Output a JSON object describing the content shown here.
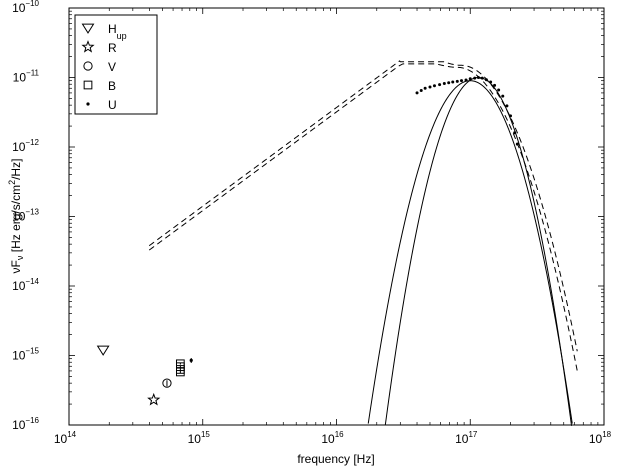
{
  "chart_data": {
    "type": "scatter",
    "xlabel": "frequency [Hz]",
    "ylabel": {
      "base": "νF",
      "sub": "ν",
      "unit_pre": " [Hz erg/s/cm",
      "unit_sup": "2",
      "unit_post": "/Hz]"
    },
    "x_scale": "log",
    "y_scale": "log",
    "xlim": [
      100000000000000.0,
      1e+18
    ],
    "ylim": [
      1e-16,
      1e-10
    ],
    "x_ticks": [
      {
        "base": "10",
        "exp": "14",
        "value": 100000000000000.0
      },
      {
        "base": "10",
        "exp": "15",
        "value": 1000000000000000.0
      },
      {
        "base": "10",
        "exp": "16",
        "value": 1e+16
      },
      {
        "base": "10",
        "exp": "17",
        "value": 1e+17
      },
      {
        "base": "10",
        "exp": "18",
        "value": 1e+18
      }
    ],
    "y_ticks": [
      {
        "base": "10",
        "exp": "−16",
        "value": 1e-16
      },
      {
        "base": "10",
        "exp": "−15",
        "value": 1e-15
      },
      {
        "base": "10",
        "exp": "−14",
        "value": 1e-14
      },
      {
        "base": "10",
        "exp": "−13",
        "value": 1e-13
      },
      {
        "base": "10",
        "exp": "−12",
        "value": 1e-12
      },
      {
        "base": "10",
        "exp": "−11",
        "value": 1e-11
      },
      {
        "base": "10",
        "exp": "−10",
        "value": 1e-10
      }
    ],
    "legend": {
      "position": "top-left",
      "entries": [
        {
          "marker": "triangle-down",
          "label": "H",
          "sub": "up"
        },
        {
          "marker": "star",
          "label": "R",
          "sub": ""
        },
        {
          "marker": "circle",
          "label": "V",
          "sub": ""
        },
        {
          "marker": "square",
          "label": "B",
          "sub": ""
        },
        {
          "marker": "dot",
          "label": "U",
          "sub": ""
        }
      ]
    },
    "markers": [
      {
        "name": "H_up",
        "symbol": "triangle-down",
        "x": 180000000000000.0,
        "y": 1.2e-15
      },
      {
        "name": "R",
        "symbol": "star",
        "x": 430000000000000.0,
        "y": 2.3e-16
      },
      {
        "name": "V",
        "symbol": "circle",
        "x": 540000000000000.0,
        "y": 4e-16,
        "err": [
          3.6e-16,
          4.4e-16
        ]
      },
      {
        "name": "B",
        "symbol": "square",
        "x": 680000000000000.0,
        "y": 5.8e-16,
        "err": [
          5.6e-16,
          6e-16
        ]
      },
      {
        "name": "B",
        "symbol": "square",
        "x": 680000000000000.0,
        "y": 6.3e-16,
        "err": [
          6.1e-16,
          6.5e-16
        ]
      },
      {
        "name": "B",
        "symbol": "square",
        "x": 680000000000000.0,
        "y": 6.9e-16,
        "err": [
          6.7e-16,
          7.1e-16
        ]
      },
      {
        "name": "B",
        "symbol": "square",
        "x": 680000000000000.0,
        "y": 7.6e-16,
        "err": [
          7.4e-16,
          7.8e-16
        ]
      },
      {
        "name": "U",
        "symbol": "dot",
        "x": 820000000000000.0,
        "y": 8.5e-16,
        "err": [
          7.8e-16,
          9.2e-16
        ]
      }
    ],
    "xray_spectrum": {
      "symbol": "dot",
      "x": [
        4e+16,
        4.3e+16,
        4.6e+16,
        5e+16,
        5.4e+16,
        5.9e+16,
        6.4e+16,
        6.9e+16,
        7.4e+16,
        8e+16,
        8.6e+16,
        9.3e+16,
        1e+17,
        1.08e+17,
        1.15e+17,
        1.23e+17,
        1.32e+17,
        1.42e+17,
        1.52e+17,
        1.63e+17,
        1.75e+17,
        1.88e+17,
        2e+17,
        2.15e+17,
        2.25e+17
      ],
      "y": [
        6e-12,
        6.5e-12,
        7e-12,
        7.3e-12,
        7.6e-12,
        7.9e-12,
        8.2e-12,
        8.4e-12,
        8.6e-12,
        8.8e-12,
        9e-12,
        9.2e-12,
        9.6e-12,
        9.8e-12,
        1e-11,
        9.8e-12,
        9.3e-12,
        8.6e-12,
        7.7e-12,
        6.6e-12,
        5.4e-12,
        3.9e-12,
        2.8e-12,
        1.6e-12,
        1.1e-12
      ]
    },
    "series": [
      {
        "name": "model-solid-1",
        "style": "solid",
        "peak_x": 1e+17,
        "peak_y": 9e-12,
        "sigma_decades": 0.16
      },
      {
        "name": "model-solid-2",
        "style": "solid",
        "peak_x": 1.15e+17,
        "peak_y": 1e-11,
        "sigma_decades": 0.145
      },
      {
        "name": "model-dashed-1",
        "style": "dashed",
        "peak_x": 8.5e+16,
        "peak_y": 1.5e-11,
        "low_slope": 1.42,
        "low_x0": 1e+16,
        "low_y0": 3.7e-12,
        "knee_x": 3e+16,
        "cut_sigma_decades": 0.2
      },
      {
        "name": "model-dashed-2",
        "style": "dashed",
        "peak_x": 8e+16,
        "peak_y": 1.4e-11,
        "low_slope": 1.42,
        "low_x0": 1e+16,
        "low_y0": 3.2e-12,
        "knee_x": 2.8e+16,
        "cut_sigma_decades": 0.2
      }
    ]
  }
}
